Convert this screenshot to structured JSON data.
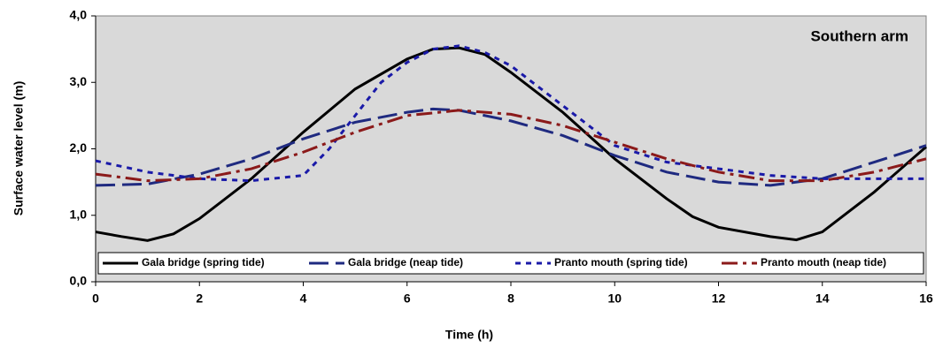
{
  "chart_data": {
    "type": "line",
    "annotation": "Southern arm",
    "xlabel": "Time (h)",
    "ylabel": "Surface water level  (m)",
    "xlim": [
      0,
      16
    ],
    "ylim": [
      0,
      4
    ],
    "xticks": [
      0,
      2,
      4,
      6,
      8,
      10,
      12,
      14,
      16
    ],
    "yticks": [
      {
        "value": 0,
        "label": "0,0"
      },
      {
        "value": 1,
        "label": "1,0"
      },
      {
        "value": 2,
        "label": "2,0"
      },
      {
        "value": 3,
        "label": "3,0"
      },
      {
        "value": 4,
        "label": "4,0"
      }
    ],
    "legend": "bottom",
    "series": [
      {
        "name": "Gala bridge (spring tide)",
        "color": "#000000",
        "dash": "solid",
        "x": [
          0,
          0.5,
          1,
          1.5,
          2,
          3,
          4,
          5,
          6,
          6.5,
          7,
          7.5,
          8,
          9,
          10,
          11,
          11.5,
          12,
          13,
          13.5,
          14,
          15,
          16
        ],
        "values": [
          0.75,
          0.68,
          0.62,
          0.72,
          0.95,
          1.55,
          2.25,
          2.9,
          3.35,
          3.5,
          3.52,
          3.42,
          3.15,
          2.55,
          1.85,
          1.25,
          0.98,
          0.82,
          0.68,
          0.63,
          0.75,
          1.35,
          2.03
        ]
      },
      {
        "name": "Gala bridge (neap tide)",
        "color": "#1f2a80",
        "dash": "long",
        "x": [
          0,
          1,
          2,
          3,
          4,
          5,
          6,
          6.5,
          7,
          8,
          9,
          10,
          11,
          12,
          13,
          14,
          15,
          16
        ],
        "values": [
          1.45,
          1.47,
          1.62,
          1.85,
          2.15,
          2.4,
          2.55,
          2.6,
          2.58,
          2.42,
          2.2,
          1.9,
          1.65,
          1.5,
          1.45,
          1.55,
          1.8,
          2.05
        ]
      },
      {
        "name": "Pranto mouth (spring tide)",
        "color": "#1a1aa8",
        "dash": "short",
        "x": [
          0,
          1,
          2,
          3,
          4,
          4.5,
          5,
          5.5,
          6,
          6.5,
          7,
          7.5,
          8,
          9,
          10,
          11,
          12,
          13,
          14,
          15,
          16
        ],
        "values": [
          1.82,
          1.65,
          1.55,
          1.52,
          1.6,
          2.0,
          2.5,
          3.0,
          3.3,
          3.5,
          3.55,
          3.45,
          3.25,
          2.65,
          2.05,
          1.8,
          1.7,
          1.6,
          1.55,
          1.55,
          1.55
        ]
      },
      {
        "name": "Pranto mouth (neap tide)",
        "color": "#8b1a1a",
        "dash": "dashdot",
        "x": [
          0,
          1,
          2,
          3,
          4,
          5,
          6,
          7,
          8,
          9,
          10,
          11,
          12,
          13,
          14,
          15,
          16
        ],
        "values": [
          1.62,
          1.52,
          1.55,
          1.7,
          1.95,
          2.25,
          2.5,
          2.58,
          2.52,
          2.35,
          2.1,
          1.85,
          1.65,
          1.52,
          1.52,
          1.65,
          1.85
        ]
      }
    ]
  }
}
